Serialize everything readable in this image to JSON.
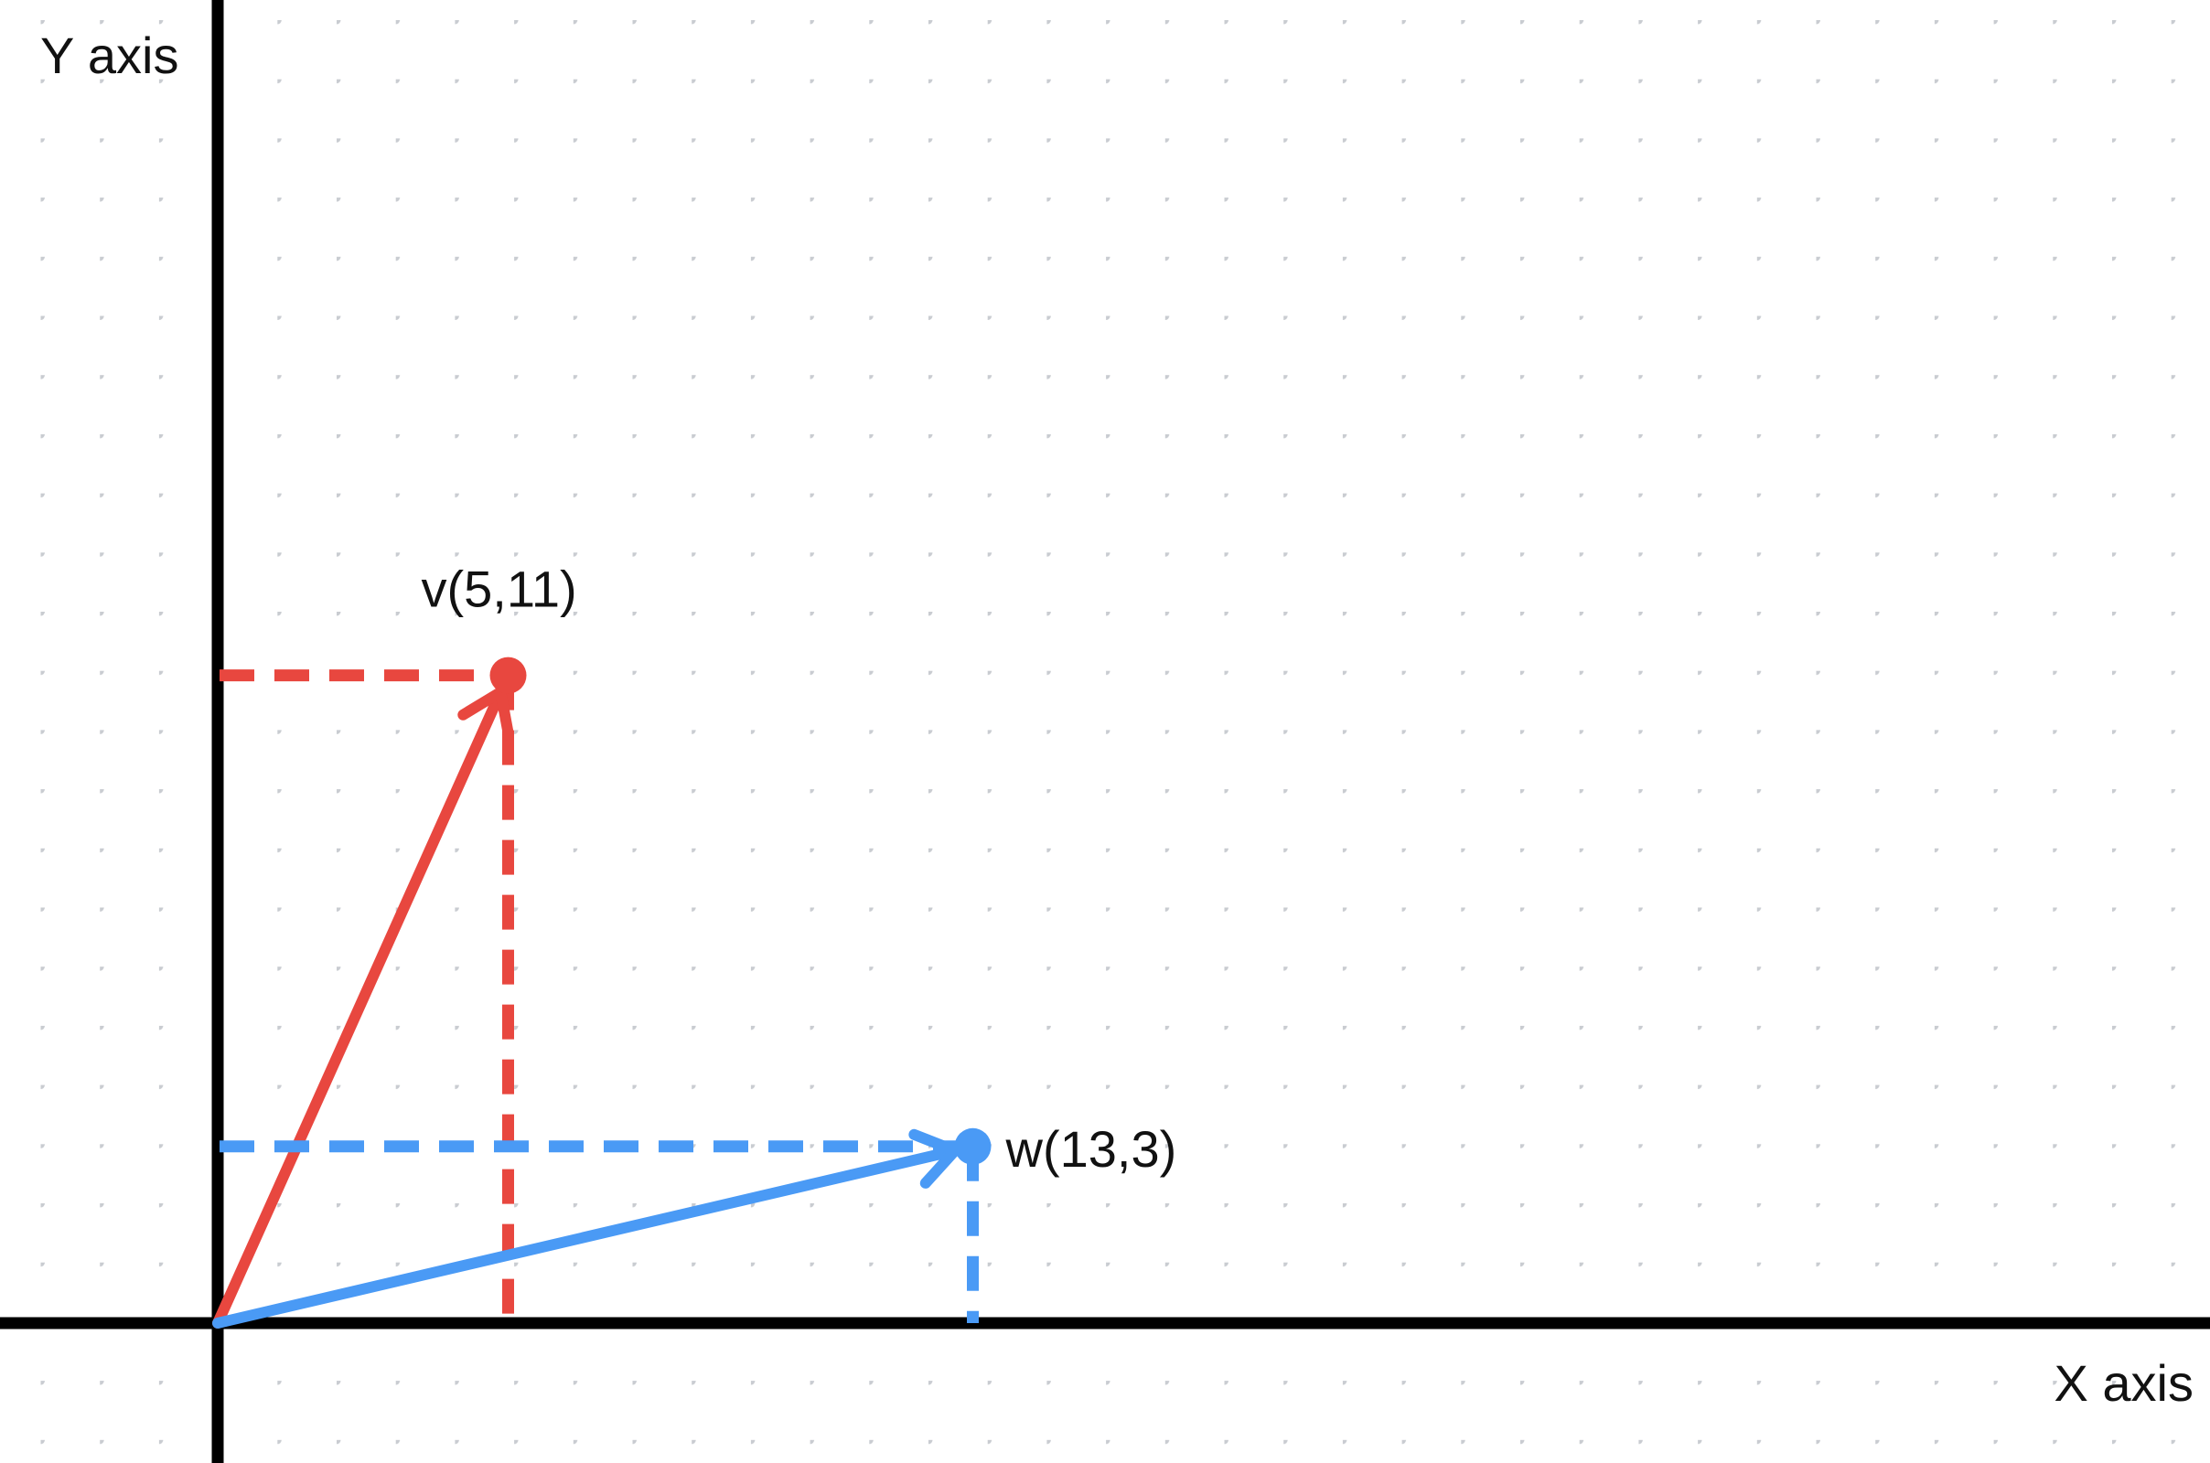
{
  "axes": {
    "x_label": "X axis",
    "y_label": "Y axis"
  },
  "vectors": [
    {
      "id": "v",
      "label": "v(5,11)",
      "x": 5,
      "y": 11,
      "color": "#E8473F"
    },
    {
      "id": "w",
      "label": "w(13,3)",
      "x": 13,
      "y": 3,
      "color": "#4A9AF5"
    }
  ],
  "colors": {
    "axis": "#000000",
    "grid_dot": "#C9CCD1",
    "background": "#FFFFFF"
  }
}
